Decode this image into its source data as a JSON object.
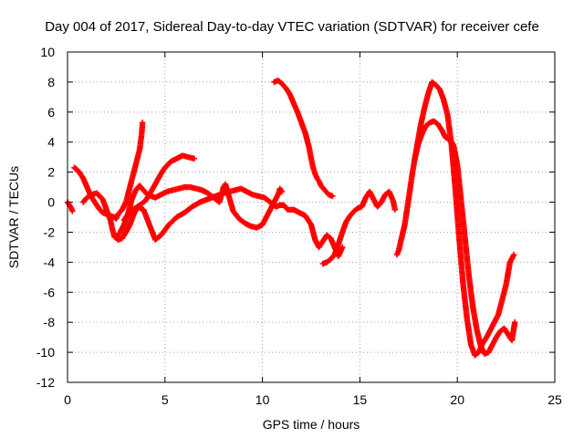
{
  "chart_data": {
    "type": "scatter",
    "title": "Day 004 of 2017, Sidereal Day-to-day VTEC variation (SDTVAR) for receiver cefe",
    "xlabel": "GPS time / hours",
    "ylabel": "SDTVAR / TECUs",
    "xlim": [
      0,
      25
    ],
    "ylim": [
      -12,
      10
    ],
    "xticks": [
      0,
      5,
      10,
      15,
      20,
      25
    ],
    "yticks": [
      -12,
      -10,
      -8,
      -6,
      -4,
      -2,
      0,
      2,
      4,
      6,
      8,
      10
    ],
    "grid": true,
    "marker": "+",
    "colors": {
      "points": "#ff0000",
      "axes": "#000000",
      "grid": "#a0a0a0"
    },
    "series": [
      {
        "x": [
          0.0,
          0.1,
          0.2,
          0.25
        ],
        "y": [
          0.0,
          -0.2,
          -0.4,
          -0.6
        ]
      },
      {
        "x": [
          0.35,
          0.45,
          0.6,
          0.8,
          1.0,
          1.2,
          1.4,
          1.6,
          1.8,
          2.0,
          2.2,
          2.4,
          2.5,
          2.6,
          2.8,
          3.0,
          3.1,
          3.3,
          3.5,
          3.6,
          3.7,
          3.8,
          3.85
        ],
        "y": [
          2.3,
          2.2,
          2.0,
          1.6,
          1.0,
          0.4,
          0.0,
          -0.4,
          -0.7,
          -0.8,
          -0.9,
          -1.0,
          -1.1,
          -0.8,
          -0.5,
          0.0,
          0.5,
          1.5,
          2.5,
          3.0,
          3.5,
          4.5,
          5.3
        ]
      },
      {
        "x": [
          0.8,
          1.0,
          1.2,
          1.5,
          1.8,
          2.0,
          2.2,
          2.3,
          2.4,
          2.6,
          2.8,
          3.0,
          3.2,
          3.4,
          3.6,
          3.8,
          4.0,
          4.2,
          4.5,
          4.8,
          5.0,
          5.3,
          5.6,
          5.9,
          6.2,
          6.5
        ],
        "y": [
          0.0,
          0.3,
          0.5,
          0.6,
          0.2,
          -0.5,
          -1.2,
          -1.8,
          -2.3,
          -2.5,
          -2.4,
          -2.0,
          -1.5,
          -0.8,
          -0.3,
          -0.1,
          0.1,
          0.5,
          1.2,
          1.9,
          2.3,
          2.7,
          2.9,
          3.1,
          3.0,
          2.9
        ]
      },
      {
        "x": [
          2.9,
          3.2,
          3.6,
          3.9,
          4.2,
          4.5,
          4.8,
          5.2,
          5.6,
          6.0,
          6.4,
          6.8,
          7.2,
          7.6,
          8.0,
          8.3,
          8.6,
          8.9,
          9.2,
          9.5,
          9.8,
          10.1,
          10.4,
          10.7,
          10.9,
          11.1,
          11.3,
          11.6,
          11.9,
          12.2,
          12.5,
          12.7,
          12.9,
          13.1,
          13.3,
          13.5,
          13.7,
          13.9,
          14.1
        ],
        "y": [
          -1.2,
          -0.6,
          -0.3,
          -0.5,
          -1.5,
          -2.5,
          -2.2,
          -1.5,
          -1.0,
          -0.7,
          -0.3,
          0.0,
          0.2,
          0.4,
          0.6,
          0.7,
          0.8,
          0.9,
          0.7,
          0.5,
          0.4,
          0.3,
          0.0,
          -0.3,
          -0.2,
          -0.2,
          -0.5,
          -0.5,
          -0.7,
          -0.9,
          -1.5,
          -2.5,
          -3.0,
          -2.6,
          -2.2,
          -2.4,
          -3.0,
          -3.6,
          -3.0
        ]
      },
      {
        "x": [
          2.5,
          2.7,
          2.9,
          3.1,
          3.3,
          3.5,
          3.7,
          3.9,
          4.1,
          4.3,
          4.5,
          4.8,
          5.1,
          5.4,
          5.7,
          6.0,
          6.3,
          6.6,
          6.9,
          7.2,
          7.5,
          7.8,
          7.9,
          8.0,
          8.1,
          8.3,
          8.5,
          8.8,
          9.1,
          9.4,
          9.7,
          10.0,
          10.2,
          10.4,
          10.6,
          10.8,
          10.9,
          11.0
        ],
        "y": [
          -2.3,
          -2.0,
          -1.5,
          -0.8,
          0.2,
          0.8,
          1.1,
          0.8,
          0.5,
          0.4,
          0.3,
          0.5,
          0.7,
          0.8,
          0.9,
          1.0,
          1.0,
          0.9,
          0.8,
          0.6,
          0.3,
          0.0,
          0.5,
          1.0,
          1.2,
          0.3,
          -0.6,
          -1.1,
          -1.4,
          -1.6,
          -1.7,
          -1.5,
          -1.0,
          -0.5,
          0.0,
          0.5,
          0.9,
          0.7
        ]
      },
      {
        "x": [
          10.6,
          10.8,
          11.0,
          11.2,
          11.4,
          11.6,
          11.8,
          12.0,
          12.2,
          12.4,
          12.5,
          12.6,
          12.7,
          12.8,
          12.9,
          13.0,
          13.2,
          13.4,
          13.6
        ],
        "y": [
          8.0,
          8.1,
          7.9,
          7.6,
          7.2,
          6.6,
          6.0,
          5.3,
          4.6,
          3.6,
          2.9,
          2.3,
          1.9,
          1.6,
          1.4,
          1.1,
          0.8,
          0.5,
          0.4
        ]
      },
      {
        "x": [
          13.1,
          13.3,
          13.5,
          13.7,
          13.9,
          14.1,
          14.3,
          14.5,
          14.7,
          14.9,
          15.1,
          15.3,
          15.5,
          15.7,
          15.9,
          16.1,
          16.3,
          16.5,
          16.7,
          16.8
        ],
        "y": [
          -4.1,
          -4.0,
          -3.8,
          -3.5,
          -2.8,
          -2.0,
          -1.3,
          -0.9,
          -0.6,
          -0.4,
          -0.3,
          0.3,
          0.7,
          0.2,
          -0.3,
          0.0,
          0.5,
          0.7,
          0.1,
          -0.5
        ]
      },
      {
        "x": [
          16.9,
          17.0,
          17.1,
          17.3,
          17.5,
          17.7,
          17.9,
          18.1,
          18.3,
          18.5,
          18.7,
          18.9,
          19.1,
          19.3,
          19.5,
          19.7,
          19.9,
          20.1,
          20.3,
          20.5,
          20.7,
          20.9,
          21.1,
          21.3,
          21.5,
          21.7,
          21.9,
          22.1,
          22.3,
          22.5,
          22.7,
          22.9
        ],
        "y": [
          -3.5,
          -3.2,
          -2.6,
          -1.5,
          0.2,
          2.0,
          3.5,
          5.0,
          6.2,
          7.2,
          8.0,
          7.8,
          7.5,
          6.8,
          5.8,
          3.8,
          0.8,
          -2.5,
          -5.5,
          -7.8,
          -9.5,
          -10.2,
          -10.0,
          -9.4,
          -9.0,
          -8.5,
          -8.0,
          -7.5,
          -6.5,
          -5.5,
          -4.0,
          -3.5
        ]
      },
      {
        "x": [
          17.8,
          18.0,
          18.2,
          18.4,
          18.6,
          18.8,
          19.0,
          19.2,
          19.4,
          19.6,
          19.8,
          20.0,
          20.2,
          20.4,
          20.6,
          20.8,
          21.0,
          21.2,
          21.4,
          21.6,
          21.8,
          22.0,
          22.2,
          22.4,
          22.6,
          22.8,
          22.95
        ],
        "y": [
          2.8,
          3.9,
          4.6,
          5.1,
          5.3,
          5.4,
          5.2,
          4.8,
          4.3,
          4.2,
          3.8,
          2.5,
          0.0,
          -2.5,
          -5.0,
          -7.0,
          -8.5,
          -9.6,
          -10.1,
          -10.0,
          -9.5,
          -9.0,
          -8.6,
          -8.4,
          -8.8,
          -9.2,
          -8.0
        ]
      }
    ]
  }
}
